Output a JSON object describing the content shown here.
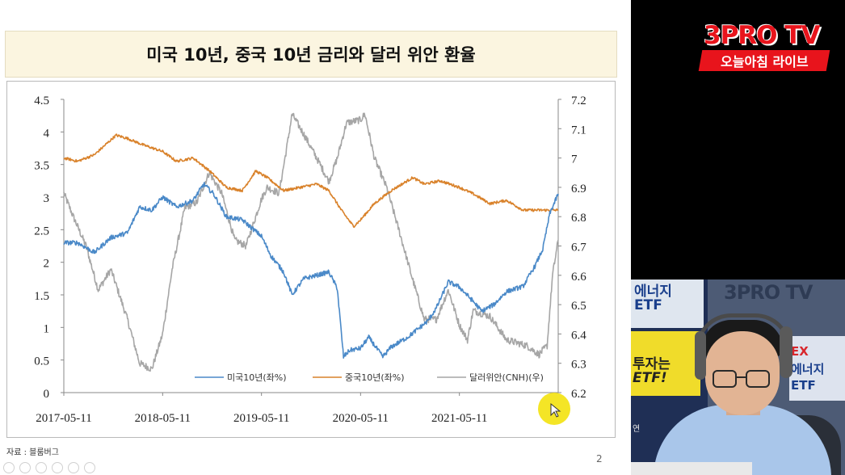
{
  "slide": {
    "title": "미국 10년, 중국 10년 금리와 달러 위안 환율",
    "source_note": "자료 : 블룸버그",
    "page_number": "2"
  },
  "colors": {
    "us10y": "#4a89c8",
    "cn10y": "#d9822b",
    "usdcnh": "#a6a6a6",
    "accent_red": "#e8141c",
    "cursor_highlight": "#f2e000"
  },
  "chart_data": {
    "type": "line",
    "title": "",
    "x_tick_labels": [
      "2017-05-11",
      "2018-05-11",
      "2019-05-11",
      "2020-05-11",
      "2021-05-11"
    ],
    "x_range": [
      "2017-05-11",
      "2022-05-11"
    ],
    "y_left": {
      "range": [
        0,
        4.5
      ],
      "ticks": [
        "0",
        "0.5",
        "1",
        "1.5",
        "2",
        "2.5",
        "3",
        "3.5",
        "4",
        "4.5"
      ]
    },
    "y_right": {
      "range": [
        6.2,
        7.2
      ],
      "ticks": [
        "6.2",
        "6.3",
        "6.4",
        "6.5",
        "6.6",
        "6.7",
        "6.8",
        "6.9",
        "7",
        "7.1",
        "7.2"
      ]
    },
    "grid": false,
    "legend_position": "bottom-right",
    "legend": [
      "미국10년(좌%)",
      "중국10년(좌%)",
      "달러위안(CNH)(우)"
    ],
    "series": [
      {
        "name": "미국10년(좌%)",
        "axis": "left",
        "x": [
          "2017-05-11",
          "2017-07-01",
          "2017-09-01",
          "2017-11-01",
          "2018-01-01",
          "2018-02-15",
          "2018-04-01",
          "2018-05-11",
          "2018-07-01",
          "2018-09-01",
          "2018-10-10",
          "2018-11-15",
          "2019-01-01",
          "2019-03-01",
          "2019-05-11",
          "2019-06-15",
          "2019-08-01",
          "2019-09-01",
          "2019-10-15",
          "2019-12-01",
          "2020-01-15",
          "2020-02-15",
          "2020-03-09",
          "2020-04-01",
          "2020-05-11",
          "2020-06-10",
          "2020-08-01",
          "2020-09-01",
          "2020-11-01",
          "2021-01-15",
          "2021-02-15",
          "2021-03-31",
          "2021-05-11",
          "2021-07-01",
          "2021-08-01",
          "2021-09-15",
          "2021-11-01",
          "2022-01-01",
          "2022-02-15",
          "2022-03-15",
          "2022-04-10",
          "2022-05-11"
        ],
        "values": [
          2.3,
          2.3,
          2.15,
          2.38,
          2.45,
          2.85,
          2.8,
          3.0,
          2.85,
          2.95,
          3.2,
          3.05,
          2.7,
          2.65,
          2.4,
          2.1,
          1.85,
          1.5,
          1.75,
          1.8,
          1.85,
          1.6,
          0.55,
          0.65,
          0.68,
          0.85,
          0.55,
          0.7,
          0.85,
          1.1,
          1.3,
          1.7,
          1.62,
          1.4,
          1.25,
          1.35,
          1.55,
          1.63,
          1.95,
          2.2,
          2.75,
          3.05
        ]
      },
      {
        "name": "중국10년(좌%)",
        "axis": "left",
        "x": [
          "2017-05-11",
          "2017-07-01",
          "2017-09-01",
          "2017-11-20",
          "2018-01-01",
          "2018-03-01",
          "2018-05-11",
          "2018-07-01",
          "2018-09-01",
          "2018-11-01",
          "2019-01-01",
          "2019-03-01",
          "2019-04-20",
          "2019-06-01",
          "2019-08-01",
          "2019-10-01",
          "2019-12-01",
          "2020-01-15",
          "2020-03-01",
          "2020-04-15",
          "2020-05-11",
          "2020-07-01",
          "2020-09-01",
          "2020-11-20",
          "2021-01-01",
          "2021-03-01",
          "2021-05-11",
          "2021-07-01",
          "2021-09-01",
          "2021-11-01",
          "2022-01-01",
          "2022-03-01",
          "2022-05-11"
        ],
        "values": [
          3.6,
          3.55,
          3.65,
          3.95,
          3.9,
          3.8,
          3.7,
          3.55,
          3.6,
          3.4,
          3.15,
          3.1,
          3.4,
          3.3,
          3.1,
          3.15,
          3.2,
          3.1,
          2.8,
          2.55,
          2.65,
          2.9,
          3.1,
          3.3,
          3.2,
          3.25,
          3.15,
          3.05,
          2.9,
          2.95,
          2.8,
          2.8,
          2.8
        ]
      },
      {
        "name": "달러위안(CNH)(우)",
        "axis": "right",
        "x": [
          "2017-05-11",
          "2017-06-15",
          "2017-08-01",
          "2017-09-15",
          "2017-11-01",
          "2018-01-01",
          "2018-02-15",
          "2018-04-01",
          "2018-05-11",
          "2018-06-15",
          "2018-08-01",
          "2018-09-15",
          "2018-10-30",
          "2018-12-15",
          "2019-02-01",
          "2019-03-15",
          "2019-05-11",
          "2019-06-01",
          "2019-07-15",
          "2019-08-15",
          "2019-09-01",
          "2019-10-15",
          "2019-12-01",
          "2020-01-15",
          "2020-02-15",
          "2020-03-20",
          "2020-05-11",
          "2020-05-27",
          "2020-07-01",
          "2020-08-15",
          "2020-10-01",
          "2020-11-15",
          "2021-01-01",
          "2021-02-15",
          "2021-03-31",
          "2021-05-11",
          "2021-06-10",
          "2021-07-01",
          "2021-09-01",
          "2021-11-01",
          "2022-01-15",
          "2022-03-01",
          "2022-03-31",
          "2022-04-20",
          "2022-05-11"
        ],
        "values": [
          6.88,
          6.8,
          6.7,
          6.55,
          6.62,
          6.45,
          6.3,
          6.28,
          6.4,
          6.62,
          6.83,
          6.85,
          6.95,
          6.88,
          6.72,
          6.7,
          6.86,
          6.9,
          6.88,
          7.05,
          7.15,
          7.08,
          7.0,
          6.92,
          7.0,
          7.12,
          7.13,
          7.15,
          7.0,
          6.9,
          6.75,
          6.6,
          6.45,
          6.45,
          6.55,
          6.43,
          6.38,
          6.48,
          6.46,
          6.38,
          6.36,
          6.33,
          6.36,
          6.6,
          6.72
        ]
      }
    ]
  },
  "right_panel": {
    "logo_main": "3PRO TV",
    "logo_sub": "오늘아침 라이브",
    "camera": {
      "logo": "3PRO TV",
      "poster1_line1": "에너지",
      "poster1_line2": "ETF",
      "poster2_line1": "투자는",
      "poster2_line2": "ETF!",
      "poster3_line1": "EX",
      "poster3_line2": "에너지",
      "poster3_line3": "ETF",
      "caption": "연"
    }
  }
}
